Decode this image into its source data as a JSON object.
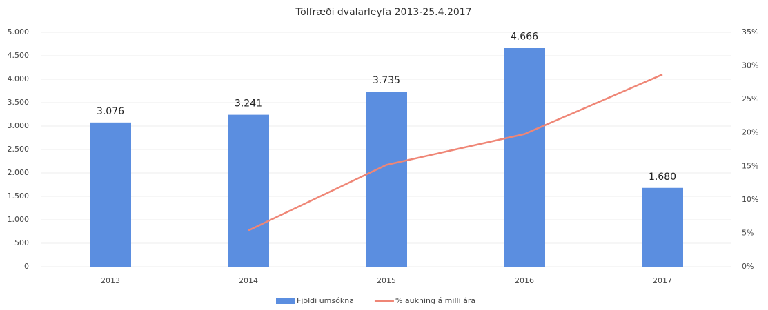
{
  "chart_data": {
    "type": "bar_line",
    "title": "Tölfræði dvalarleyfa 2013-25.4.2017",
    "categories": [
      "2013",
      "2014",
      "2015",
      "2016",
      "2017"
    ],
    "series": [
      {
        "name": "Fjöldi umsókna",
        "color": "#5b8ee0",
        "type": "bar",
        "values": [
          3076,
          3241,
          3735,
          4666,
          1680
        ],
        "value_labels": [
          "3.076",
          "3.241",
          "3.735",
          "4.666",
          "1.680"
        ]
      },
      {
        "name": "% aukning á milli ára",
        "color": "#ef8676",
        "type": "line",
        "axis": "y2",
        "values": [
          null,
          5.4,
          15.2,
          19.8,
          28.7
        ]
      }
    ],
    "ylim": [
      0,
      5000
    ],
    "yticks": [
      0,
      500,
      {
        "value": 1000,
        "label": "1.000"
      },
      {
        "value": 1500,
        "label": "1.500"
      },
      {
        "value": 2000,
        "label": "2.000"
      },
      {
        "value": 2500,
        "label": "2.500"
      },
      {
        "value": 3000,
        "label": "3.000"
      },
      {
        "value": 3500,
        "label": "3.500"
      },
      {
        "value": 4000,
        "label": "4.000"
      },
      {
        "value": 4500,
        "label": "4.500"
      },
      {
        "value": 5000,
        "label": "5.000"
      }
    ],
    "y2lim": [
      0,
      35
    ],
    "y2ticks": [
      {
        "value": 0,
        "label": "0%"
      },
      {
        "value": 5,
        "label": "5%"
      },
      {
        "value": 10,
        "label": "10%"
      },
      {
        "value": 15,
        "label": "15%"
      },
      {
        "value": 20,
        "label": "20%"
      },
      {
        "value": 25,
        "label": "25%"
      },
      {
        "value": 30,
        "label": "30%"
      },
      {
        "value": 35,
        "label": "35%"
      }
    ],
    "grid": true,
    "legend": "bottom"
  }
}
